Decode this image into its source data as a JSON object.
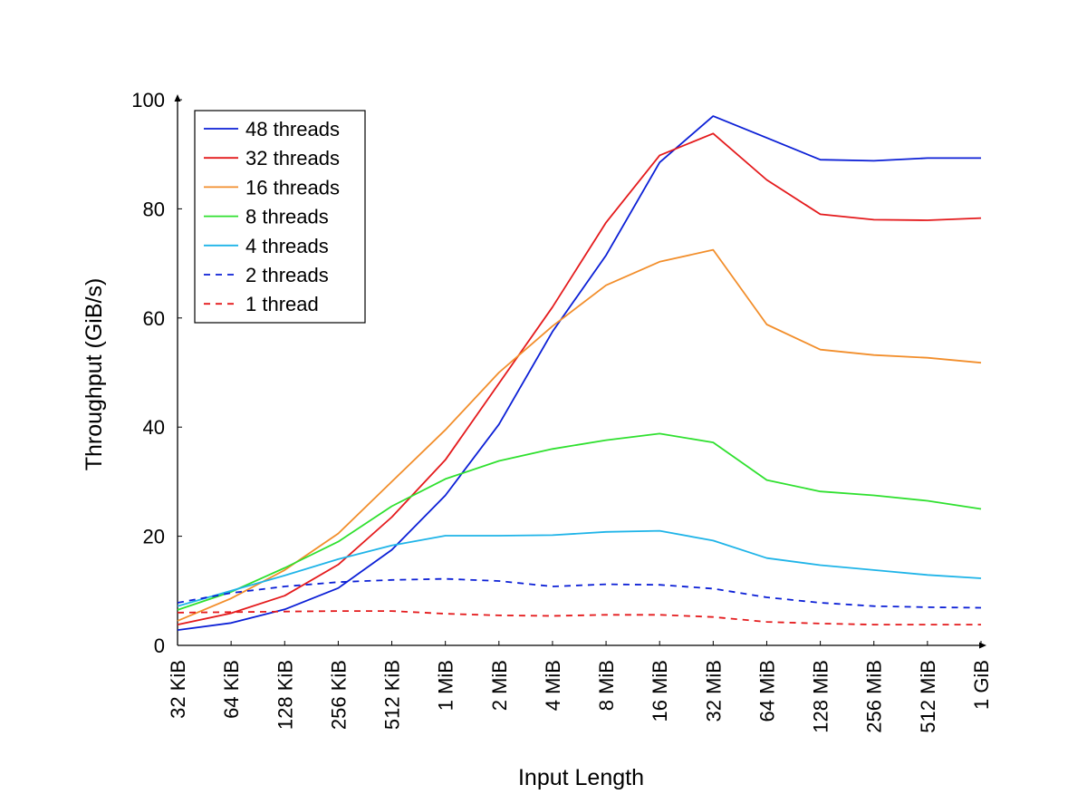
{
  "chart_data": {
    "type": "line",
    "title": "",
    "xlabel": "Input Length",
    "ylabel": "Throughput (GiB/s)",
    "categories": [
      "32 KiB",
      "64 KiB",
      "128 KiB",
      "256 KiB",
      "512 KiB",
      "1 MiB",
      "2 MiB",
      "4 MiB",
      "8 MiB",
      "16 MiB",
      "32 MiB",
      "64 MiB",
      "128 MiB",
      "256 MiB",
      "512 MiB",
      "1 GiB"
    ],
    "ylim": [
      0,
      100
    ],
    "yticks": [
      0,
      20,
      40,
      60,
      80,
      100
    ],
    "grid": false,
    "legend_position": "top-left",
    "series": [
      {
        "name": "48 threads",
        "color": "#0b1fd6",
        "dashed": false,
        "values": [
          2.8,
          4.1,
          6.6,
          10.5,
          17.5,
          27.5,
          40.5,
          57.5,
          71.5,
          88.5,
          97.0,
          93.0,
          89.0,
          88.8,
          89.3,
          89.3
        ]
      },
      {
        "name": "32 threads",
        "color": "#e41a1c",
        "dashed": false,
        "values": [
          3.8,
          5.9,
          9.1,
          14.8,
          23.5,
          34.0,
          48.0,
          62.0,
          77.5,
          89.8,
          93.8,
          85.3,
          79.0,
          78.0,
          77.9,
          78.3
        ]
      },
      {
        "name": "16 threads",
        "color": "#f28e2b",
        "dashed": false,
        "values": [
          4.5,
          8.6,
          13.8,
          20.5,
          30.0,
          39.5,
          50.0,
          58.5,
          66.0,
          70.3,
          72.5,
          58.8,
          54.2,
          53.2,
          52.7,
          51.8
        ]
      },
      {
        "name": "8 threads",
        "color": "#2fe02f",
        "dashed": false,
        "values": [
          6.5,
          9.8,
          14.2,
          19.0,
          25.5,
          30.5,
          33.8,
          36.0,
          37.6,
          38.8,
          37.2,
          30.3,
          28.2,
          27.5,
          26.5,
          25.0
        ]
      },
      {
        "name": "4 threads",
        "color": "#1fb4e8",
        "dashed": false,
        "values": [
          7.2,
          10.0,
          12.8,
          15.8,
          18.3,
          20.1,
          20.1,
          20.2,
          20.8,
          21.0,
          19.2,
          16.0,
          14.7,
          13.8,
          12.9,
          12.3
        ]
      },
      {
        "name": "2 threads",
        "color": "#0b1fd6",
        "dashed": true,
        "values": [
          7.8,
          9.6,
          10.8,
          11.6,
          12.0,
          12.2,
          11.8,
          10.8,
          11.2,
          11.1,
          10.4,
          8.8,
          7.8,
          7.2,
          7.0,
          6.9
        ]
      },
      {
        "name": "1 thread",
        "color": "#e41a1c",
        "dashed": true,
        "values": [
          6.0,
          6.1,
          6.2,
          6.3,
          6.3,
          5.8,
          5.5,
          5.4,
          5.6,
          5.6,
          5.2,
          4.3,
          4.0,
          3.8,
          3.8,
          3.8
        ]
      }
    ]
  }
}
